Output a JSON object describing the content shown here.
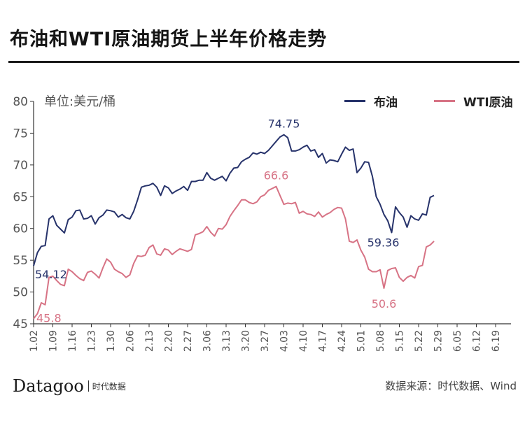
{
  "title": "布油和WTI原油期货上半年价格走势",
  "unit_label": "单位:美元/桶",
  "logo_text": "Datagoo",
  "logo_subtext": "时代数据",
  "source_text": "数据来源：时代数据、Wind",
  "colors": {
    "brent": "#27336b",
    "wti": "#d77385",
    "axis": "#333333",
    "text": "#555555"
  },
  "chart_data": {
    "type": "line",
    "title": "布油和WTI原油期货上半年价格走势",
    "ylabel": "单位:美元/桶",
    "xlabel": "",
    "ylim": [
      45,
      80
    ],
    "yticks": [
      45,
      50,
      55,
      60,
      65,
      70,
      75,
      80
    ],
    "x_range": [
      0,
      124
    ],
    "xticks": [
      {
        "label": "1.02",
        "pos": 0
      },
      {
        "label": "1.09",
        "pos": 5
      },
      {
        "label": "1.16",
        "pos": 10
      },
      {
        "label": "1.23",
        "pos": 15
      },
      {
        "label": "1.30",
        "pos": 20
      },
      {
        "label": "2.06",
        "pos": 25
      },
      {
        "label": "2.13",
        "pos": 30
      },
      {
        "label": "2.20",
        "pos": 35
      },
      {
        "label": "2.27",
        "pos": 40
      },
      {
        "label": "3.06",
        "pos": 45
      },
      {
        "label": "3.13",
        "pos": 50
      },
      {
        "label": "3.20",
        "pos": 55
      },
      {
        "label": "3.27",
        "pos": 60
      },
      {
        "label": "4.03",
        "pos": 65
      },
      {
        "label": "4.10",
        "pos": 70
      },
      {
        "label": "4.17",
        "pos": 75
      },
      {
        "label": "4.24",
        "pos": 80
      },
      {
        "label": "5.01",
        "pos": 85
      },
      {
        "label": "5.08",
        "pos": 90
      },
      {
        "label": "5.15",
        "pos": 95
      },
      {
        "label": "5.22",
        "pos": 100
      },
      {
        "label": "5.29",
        "pos": 105
      },
      {
        "label": "6.05",
        "pos": 110
      },
      {
        "label": "6.12",
        "pos": 115
      },
      {
        "label": "6.19",
        "pos": 120
      }
    ],
    "series": [
      {
        "name": "布油",
        "color": "#27336b",
        "points": [
          [
            0,
            54.12
          ],
          [
            1,
            56.2
          ],
          [
            2,
            57.2
          ],
          [
            3,
            57.3
          ],
          [
            4,
            61.5
          ],
          [
            5,
            62.0
          ],
          [
            6,
            60.5
          ],
          [
            7,
            59.9
          ],
          [
            8,
            59.3
          ],
          [
            9,
            61.4
          ],
          [
            10,
            61.8
          ],
          [
            11,
            62.8
          ],
          [
            12,
            62.9
          ],
          [
            13,
            61.5
          ],
          [
            14,
            61.6
          ],
          [
            15,
            62.0
          ],
          [
            16,
            60.7
          ],
          [
            17,
            61.7
          ],
          [
            18,
            62.1
          ],
          [
            19,
            62.9
          ],
          [
            20,
            62.8
          ],
          [
            21,
            62.6
          ],
          [
            22,
            61.8
          ],
          [
            23,
            62.2
          ],
          [
            24,
            61.7
          ],
          [
            25,
            61.5
          ],
          [
            26,
            62.7
          ],
          [
            27,
            64.5
          ],
          [
            28,
            66.5
          ],
          [
            29,
            66.7
          ],
          [
            30,
            66.8
          ],
          [
            31,
            67.1
          ],
          [
            32,
            66.5
          ],
          [
            33,
            65.2
          ],
          [
            34,
            66.7
          ],
          [
            35,
            66.4
          ],
          [
            36,
            65.5
          ],
          [
            37,
            65.9
          ],
          [
            38,
            66.2
          ],
          [
            39,
            66.6
          ],
          [
            40,
            66.0
          ],
          [
            41,
            67.4
          ],
          [
            42,
            67.4
          ],
          [
            43,
            67.6
          ],
          [
            44,
            67.6
          ],
          [
            45,
            68.8
          ],
          [
            46,
            67.9
          ],
          [
            47,
            67.6
          ],
          [
            48,
            67.9
          ],
          [
            49,
            68.2
          ],
          [
            50,
            67.5
          ],
          [
            51,
            68.7
          ],
          [
            52,
            69.5
          ],
          [
            53,
            69.6
          ],
          [
            54,
            70.5
          ],
          [
            55,
            70.9
          ],
          [
            56,
            71.2
          ],
          [
            57,
            71.9
          ],
          [
            58,
            71.7
          ],
          [
            59,
            72.0
          ],
          [
            60,
            71.8
          ],
          [
            61,
            72.3
          ],
          [
            62,
            73.0
          ],
          [
            63,
            73.7
          ],
          [
            64,
            74.4
          ],
          [
            65,
            74.75
          ],
          [
            66,
            74.3
          ],
          [
            67,
            72.2
          ],
          [
            68,
            72.2
          ],
          [
            69,
            72.4
          ],
          [
            70,
            72.8
          ],
          [
            71,
            73.1
          ],
          [
            72,
            72.2
          ],
          [
            73,
            72.4
          ],
          [
            74,
            71.2
          ],
          [
            75,
            71.8
          ],
          [
            76,
            70.3
          ],
          [
            77,
            70.8
          ],
          [
            78,
            70.7
          ],
          [
            79,
            70.5
          ],
          [
            80,
            71.7
          ],
          [
            81,
            72.8
          ],
          [
            82,
            72.3
          ],
          [
            83,
            72.5
          ],
          [
            84,
            68.8
          ],
          [
            85,
            69.5
          ],
          [
            86,
            70.5
          ],
          [
            87,
            70.4
          ],
          [
            88,
            68.2
          ],
          [
            89,
            65.0
          ],
          [
            90,
            63.8
          ],
          [
            91,
            62.2
          ],
          [
            92,
            61.2
          ],
          [
            93,
            59.36
          ],
          [
            94,
            63.4
          ],
          [
            95,
            62.5
          ],
          [
            96,
            61.8
          ],
          [
            97,
            60.2
          ],
          [
            98,
            62.0
          ],
          [
            99,
            61.5
          ],
          [
            100,
            61.3
          ],
          [
            101,
            62.3
          ],
          [
            102,
            62.1
          ],
          [
            103,
            64.9
          ],
          [
            104,
            65.2
          ]
        ]
      },
      {
        "name": "WTI原油",
        "color": "#d77385",
        "points": [
          [
            0,
            45.8
          ],
          [
            1,
            46.6
          ],
          [
            2,
            48.3
          ],
          [
            3,
            48.0
          ],
          [
            4,
            52.3
          ],
          [
            5,
            52.5
          ],
          [
            6,
            51.8
          ],
          [
            7,
            51.2
          ],
          [
            8,
            51.0
          ],
          [
            9,
            53.6
          ],
          [
            10,
            53.2
          ],
          [
            11,
            52.6
          ],
          [
            12,
            52.1
          ],
          [
            13,
            51.8
          ],
          [
            14,
            53.1
          ],
          [
            15,
            53.3
          ],
          [
            16,
            52.8
          ],
          [
            17,
            52.2
          ],
          [
            18,
            53.8
          ],
          [
            19,
            55.2
          ],
          [
            20,
            54.7
          ],
          [
            21,
            53.6
          ],
          [
            22,
            53.2
          ],
          [
            23,
            52.9
          ],
          [
            24,
            52.3
          ],
          [
            25,
            52.7
          ],
          [
            26,
            54.5
          ],
          [
            27,
            55.7
          ],
          [
            28,
            55.6
          ],
          [
            29,
            55.8
          ],
          [
            30,
            57.0
          ],
          [
            31,
            57.4
          ],
          [
            32,
            56.0
          ],
          [
            33,
            55.8
          ],
          [
            34,
            56.8
          ],
          [
            35,
            56.6
          ],
          [
            36,
            55.9
          ],
          [
            37,
            56.4
          ],
          [
            38,
            56.8
          ],
          [
            39,
            56.6
          ],
          [
            40,
            56.4
          ],
          [
            41,
            56.7
          ],
          [
            42,
            59.0
          ],
          [
            43,
            59.2
          ],
          [
            44,
            59.5
          ],
          [
            45,
            60.3
          ],
          [
            46,
            59.4
          ],
          [
            47,
            58.8
          ],
          [
            48,
            60.0
          ],
          [
            49,
            59.9
          ],
          [
            50,
            60.6
          ],
          [
            51,
            61.9
          ],
          [
            52,
            62.8
          ],
          [
            53,
            63.6
          ],
          [
            54,
            64.5
          ],
          [
            55,
            64.5
          ],
          [
            56,
            64.1
          ],
          [
            57,
            63.9
          ],
          [
            58,
            64.2
          ],
          [
            59,
            65.0
          ],
          [
            60,
            65.3
          ],
          [
            61,
            66.0
          ],
          [
            62,
            66.3
          ],
          [
            63,
            66.6
          ],
          [
            64,
            65.2
          ],
          [
            65,
            63.8
          ],
          [
            66,
            64.0
          ],
          [
            67,
            63.9
          ],
          [
            68,
            64.1
          ],
          [
            69,
            62.4
          ],
          [
            70,
            62.7
          ],
          [
            71,
            62.3
          ],
          [
            72,
            62.2
          ],
          [
            73,
            61.9
          ],
          [
            74,
            62.6
          ],
          [
            75,
            61.8
          ],
          [
            76,
            62.2
          ],
          [
            77,
            62.5
          ],
          [
            78,
            63.0
          ],
          [
            79,
            63.3
          ],
          [
            80,
            63.2
          ],
          [
            81,
            61.5
          ],
          [
            82,
            58.0
          ],
          [
            83,
            57.8
          ],
          [
            84,
            58.2
          ],
          [
            85,
            56.6
          ],
          [
            86,
            55.5
          ],
          [
            87,
            53.6
          ],
          [
            88,
            53.2
          ],
          [
            89,
            53.2
          ],
          [
            90,
            53.5
          ],
          [
            91,
            50.6
          ],
          [
            92,
            53.4
          ],
          [
            93,
            53.7
          ],
          [
            94,
            53.8
          ],
          [
            95,
            52.3
          ],
          [
            96,
            51.7
          ],
          [
            97,
            52.3
          ],
          [
            98,
            52.6
          ],
          [
            99,
            52.2
          ],
          [
            100,
            54.0
          ],
          [
            101,
            54.2
          ],
          [
            102,
            57.1
          ],
          [
            103,
            57.4
          ],
          [
            104,
            58.0
          ]
        ]
      }
    ],
    "annotations": [
      {
        "series": "布油",
        "label": "54.12",
        "x": 0,
        "y": 54.12,
        "anchor": "below-right"
      },
      {
        "series": "布油",
        "label": "74.75",
        "x": 65,
        "y": 74.75,
        "anchor": "above"
      },
      {
        "series": "布油",
        "label": "59.36",
        "x": 93,
        "y": 59.36,
        "anchor": "below-left"
      },
      {
        "series": "WTI原油",
        "label": "45.8",
        "x": 0,
        "y": 45.8,
        "anchor": "right"
      },
      {
        "series": "WTI原油",
        "label": "66.6",
        "x": 63,
        "y": 66.6,
        "anchor": "above"
      },
      {
        "series": "WTI原油",
        "label": "50.6",
        "x": 91,
        "y": 50.6,
        "anchor": "below"
      }
    ],
    "legend": [
      {
        "name": "布油",
        "color": "#27336b"
      },
      {
        "name": "WTI原油",
        "color": "#d77385"
      }
    ]
  }
}
